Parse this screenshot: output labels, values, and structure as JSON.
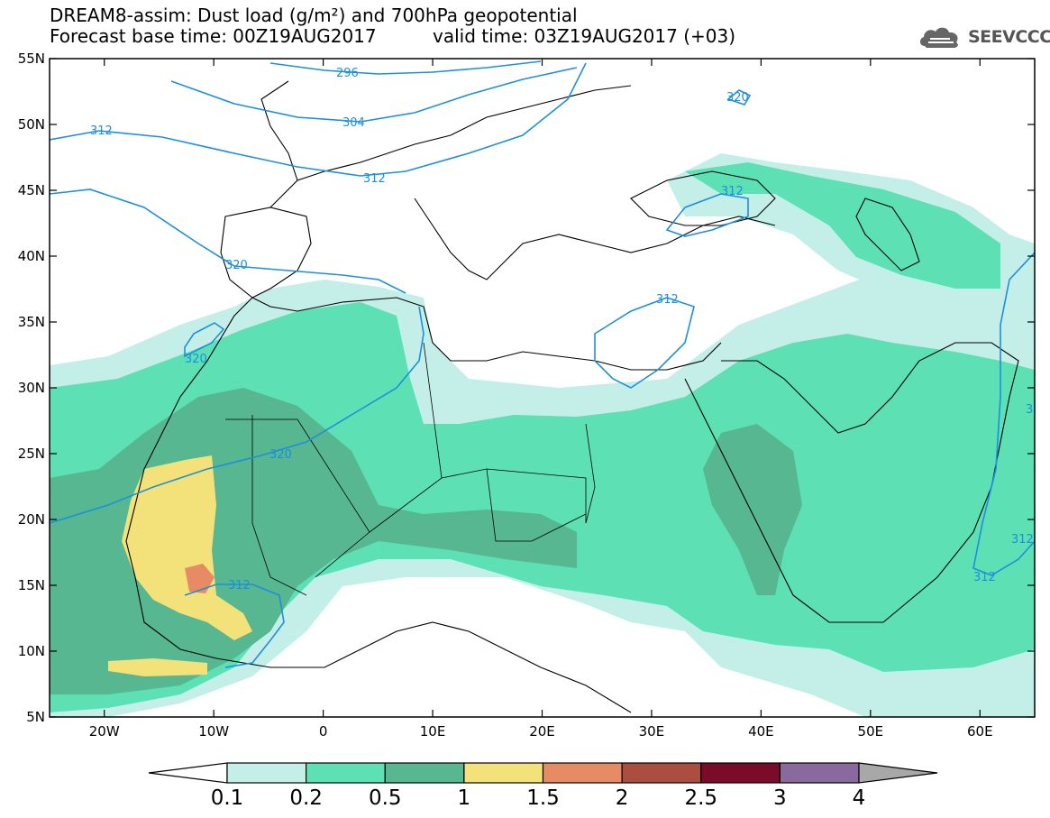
{
  "header": {
    "title_line1": "DREAM8-assim: Dust load (g/m²) and 700hPa geopotential",
    "title_line2": "Forecast base time: 00Z19AUG2017",
    "valid_time": "valid time: 03Z19AUG2017 (+03)",
    "logo_text": "SEEVCCC"
  },
  "map": {
    "lon_range": [
      -25,
      65
    ],
    "lat_range": [
      5,
      55
    ],
    "lat_ticks": [
      "55N",
      "50N",
      "45N",
      "40N",
      "35N",
      "30N",
      "25N",
      "20N",
      "15N",
      "10N",
      "5N"
    ],
    "lon_ticks": [
      "20W",
      "10W",
      "0",
      "10E",
      "20E",
      "30E",
      "40E",
      "50E",
      "60E"
    ],
    "contour_labels": [
      "296",
      "304",
      "312",
      "312",
      "312",
      "320",
      "320",
      "320",
      "320",
      "312",
      "312",
      "312",
      "312",
      "3"
    ],
    "colors": {
      "land_outline": "#000000",
      "contour": "#1e8fdc",
      "dust_0_1": "#c4efe8",
      "dust_0_2": "#5ce0b4",
      "dust_0_5": "#56b791",
      "dust_1": "#f3e27a",
      "dust_1_5": "#e68b64"
    }
  },
  "colorbar": {
    "labels": [
      "0.1",
      "0.2",
      "0.5",
      "1",
      "1.5",
      "2",
      "2.5",
      "3",
      "4"
    ],
    "colors": [
      "#ffffff",
      "#c4efe8",
      "#5ce0b4",
      "#56b791",
      "#f3e27a",
      "#e68b64",
      "#ab4e40",
      "#7a0c2a",
      "#8a6a9e",
      "#a8a8a8"
    ]
  }
}
